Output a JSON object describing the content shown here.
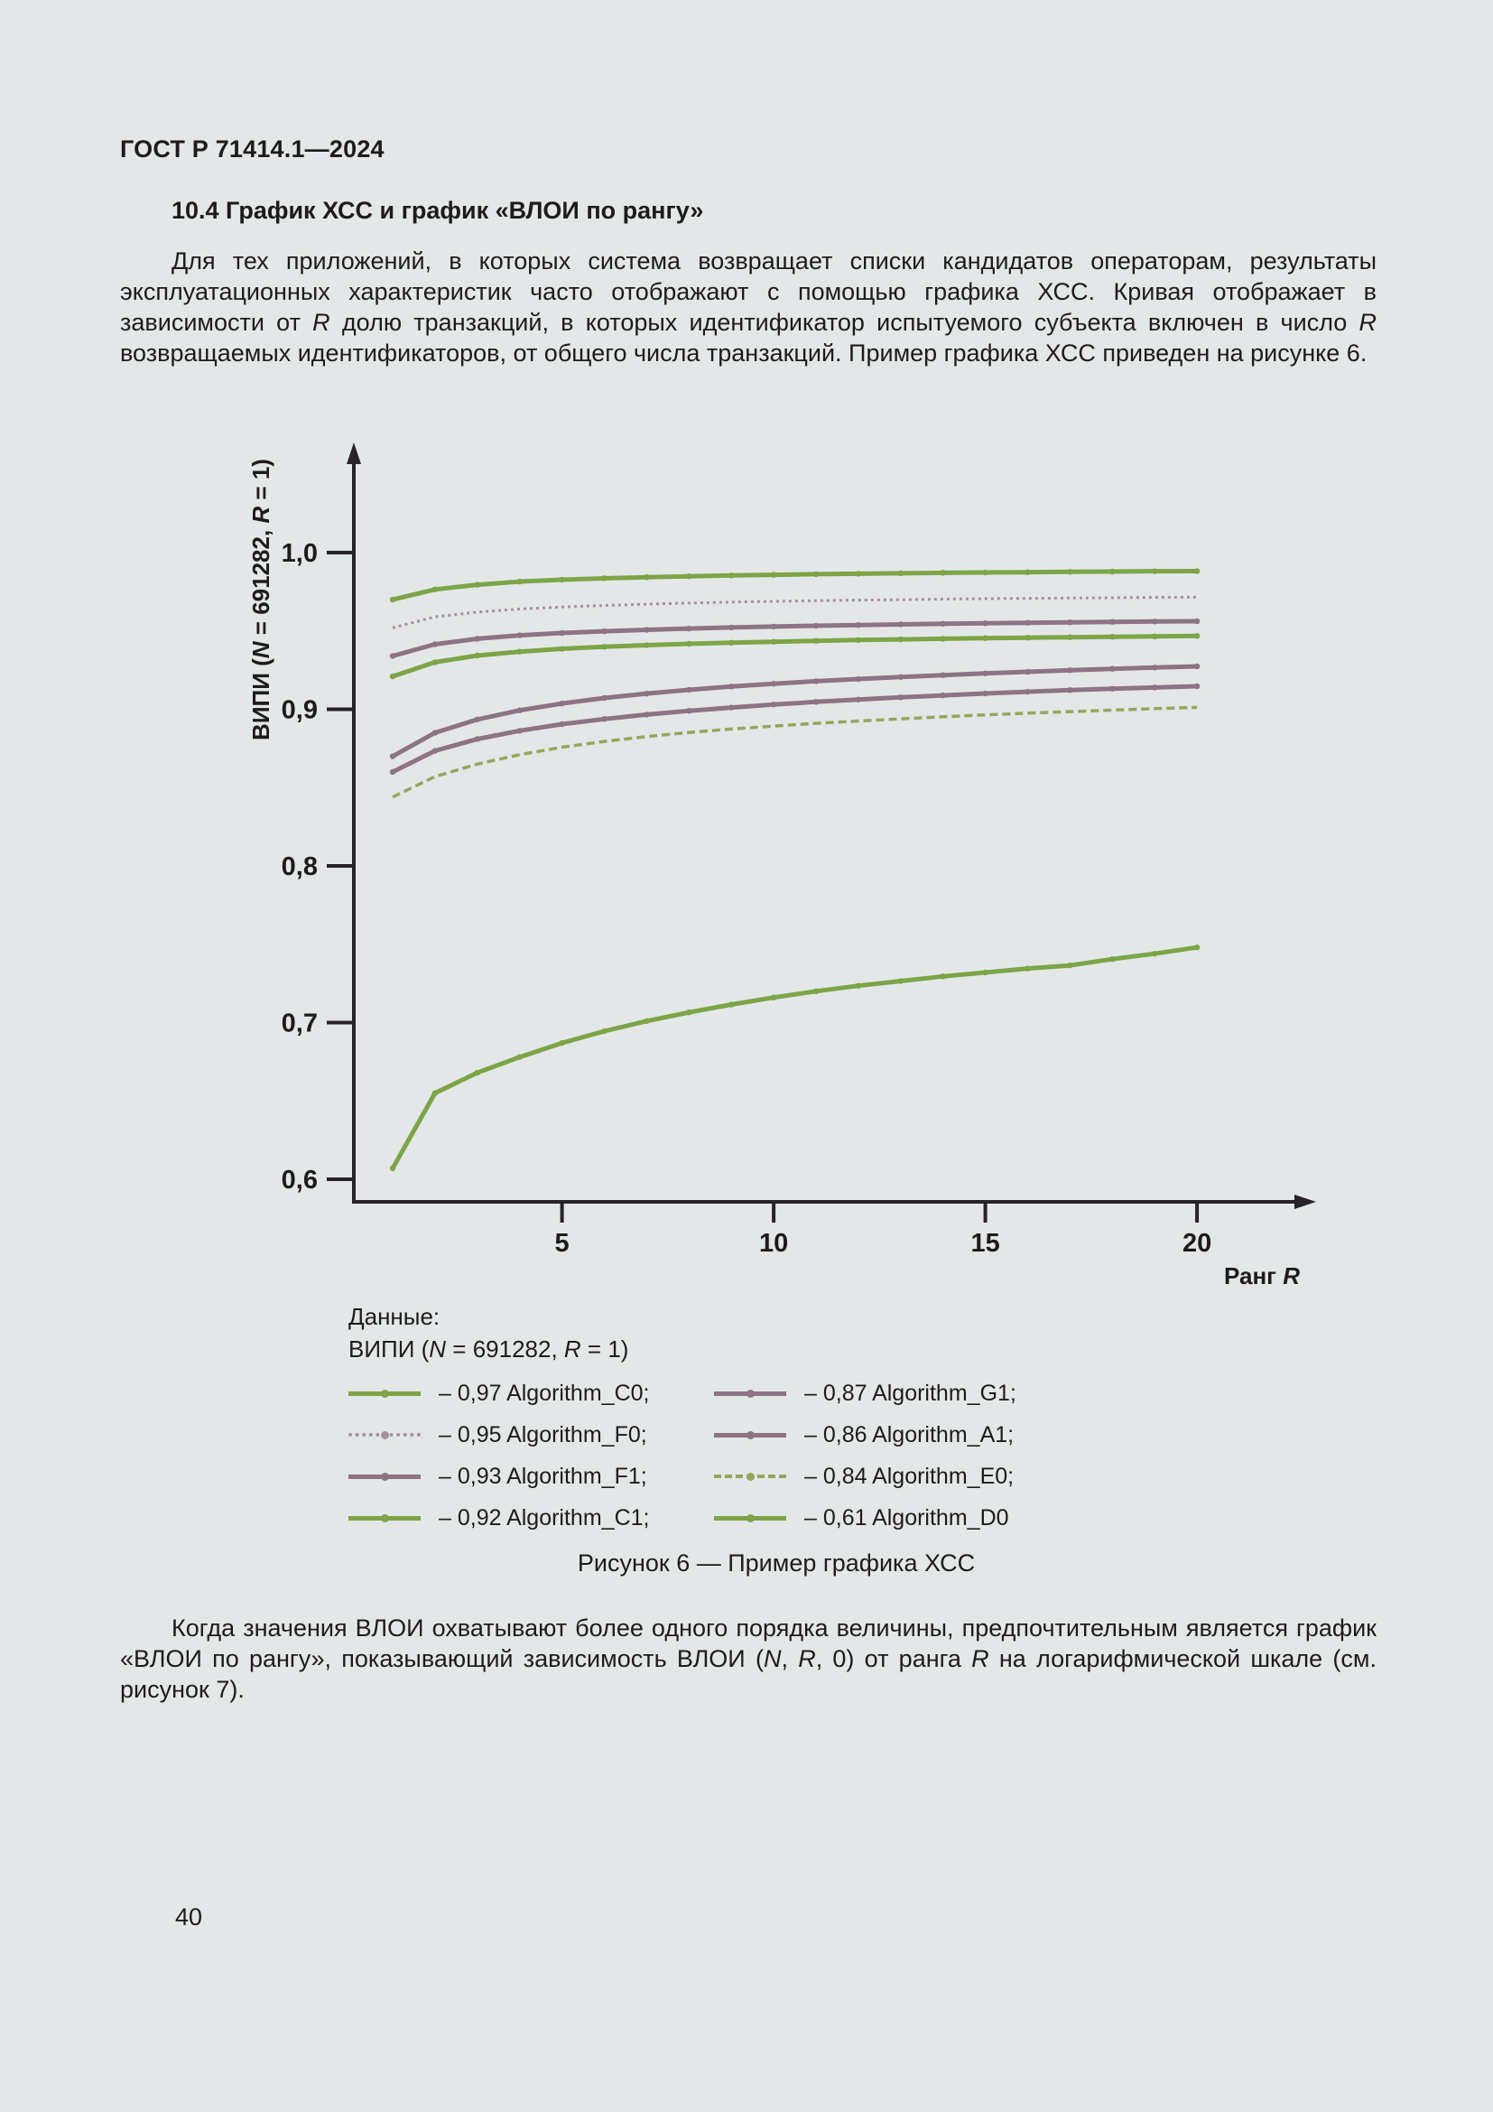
{
  "page": {
    "header": "ГОСТ Р 71414.1—2024",
    "page_number": "40"
  },
  "section": {
    "heading": "10.4  График ХСС и график «ВЛОИ по рангу»"
  },
  "paragraphs": {
    "p1": [
      {
        "t": "Для тех приложений, в которых система возвращает списки кандидатов операторам, результаты эксплуатационных характеристик часто отображают с помощью графика ХСС. Кривая отображает в зависимости от "
      },
      {
        "t": "R",
        "i": true
      },
      {
        "t": " долю транзакций, в которых идентификатор испытуемого субъекта включен в число "
      },
      {
        "t": "R",
        "i": true
      },
      {
        "t": " возвращаемых идентификаторов, от общего числа транзакций. Пример графика ХСС приведен на рисунке 6."
      }
    ],
    "p2": [
      {
        "t": "Когда значения ВЛОИ охватывают более одного порядка величины, предпочтительным является график «ВЛОИ по рангу», показывающий зависимость ВЛОИ ("
      },
      {
        "t": "N",
        "i": true
      },
      {
        "t": ", "
      },
      {
        "t": "R",
        "i": true
      },
      {
        "t": ", 0) от ранга "
      },
      {
        "t": "R",
        "i": true
      },
      {
        "t": " на логарифмической шкале (см. рисунок 7)."
      }
    ]
  },
  "figure": {
    "caption": "Рисунок 6 — Пример графика ХСС",
    "legend": {
      "title": "Данные:",
      "subtitle_segments": [
        {
          "t": "ВИПИ ("
        },
        {
          "t": "N",
          "i": true
        },
        {
          "t": " = 691282, "
        },
        {
          "t": "R",
          "i": true
        },
        {
          "t": " = 1)"
        }
      ],
      "items": [
        {
          "label": "– 0,97 Algorithm_C0;",
          "style": "solid",
          "color": "#7ba547"
        },
        {
          "label": "– 0,95 Algorithm_F0;",
          "style": "dotted",
          "color": "#a48fa0"
        },
        {
          "label": "– 0,93 Algorithm_F1;",
          "style": "solid",
          "color": "#8d7383"
        },
        {
          "label": "– 0,92 Algorithm_C1;",
          "style": "solid",
          "color": "#7ba547"
        },
        {
          "label": "– 0,87 Algorithm_G1;",
          "style": "solid",
          "color": "#8d7383"
        },
        {
          "label": "– 0,86 Algorithm_A1;",
          "style": "solid",
          "color": "#8d7383"
        },
        {
          "label": "– 0,84 Algorithm_E0;",
          "style": "dashed",
          "color": "#97a55f"
        },
        {
          "label": "– 0,61 Algorithm_D0",
          "style": "solid",
          "color": "#7ba547"
        }
      ]
    }
  },
  "chart_data": {
    "type": "line",
    "title": "",
    "xlabel_segments": [
      {
        "t": "Ранг "
      },
      {
        "t": "R",
        "i": true
      }
    ],
    "ylabel_segments": [
      {
        "t": "ВИПИ ("
      },
      {
        "t": "N",
        "i": true
      },
      {
        "t": " = 691282, "
      },
      {
        "t": "R",
        "i": true
      },
      {
        "t": " = 1)"
      }
    ],
    "xlim": [
      1,
      22
    ],
    "ylim": [
      0.58,
      1.02
    ],
    "grid": false,
    "legend_position": "below",
    "xticks": [
      {
        "v": 5,
        "label": "5"
      },
      {
        "v": 10,
        "label": "10"
      },
      {
        "v": 15,
        "label": "15"
      },
      {
        "v": 20,
        "label": "20"
      }
    ],
    "yticks": [
      {
        "v": 1.0,
        "label": "1,0"
      },
      {
        "v": 0.9,
        "label": "0,9"
      },
      {
        "v": 0.8,
        "label": "0,8"
      },
      {
        "v": 0.7,
        "label": "0,7"
      },
      {
        "v": 0.6,
        "label": "0,6"
      }
    ],
    "x": [
      1,
      2,
      3,
      4,
      5,
      6,
      7,
      8,
      9,
      10,
      11,
      12,
      13,
      14,
      15,
      16,
      17,
      18,
      19,
      20
    ],
    "series": [
      {
        "name": "Algorithm_C0",
        "legend_value": "0,97",
        "color": "#7ba547",
        "style": "solid",
        "values": [
          0.97,
          0.9765,
          0.9795,
          0.9815,
          0.9827,
          0.9836,
          0.9843,
          0.9849,
          0.9854,
          0.9858,
          0.9862,
          0.9865,
          0.9868,
          0.9871,
          0.9873,
          0.9875,
          0.9877,
          0.9879,
          0.9881,
          0.9882
        ]
      },
      {
        "name": "Algorithm_F0",
        "legend_value": "0,95",
        "color": "#a48fa0",
        "style": "dotted",
        "values": [
          0.952,
          0.959,
          0.962,
          0.964,
          0.9653,
          0.9663,
          0.9671,
          0.9678,
          0.9684,
          0.9689,
          0.9693,
          0.9697,
          0.97,
          0.9703,
          0.9706,
          0.9708,
          0.971,
          0.9712,
          0.9714,
          0.9716
        ]
      },
      {
        "name": "Algorithm_F1",
        "legend_value": "0,93",
        "color": "#8d7383",
        "style": "solid",
        "values": [
          0.934,
          0.9415,
          0.945,
          0.9472,
          0.9487,
          0.9498,
          0.9507,
          0.9515,
          0.9522,
          0.9528,
          0.9533,
          0.9538,
          0.9542,
          0.9546,
          0.9549,
          0.9552,
          0.9555,
          0.9558,
          0.956,
          0.9562
        ]
      },
      {
        "name": "Algorithm_C1",
        "legend_value": "0,92",
        "color": "#7ba547",
        "style": "solid",
        "values": [
          0.921,
          0.93,
          0.9343,
          0.9368,
          0.9386,
          0.9399,
          0.9409,
          0.9418,
          0.9425,
          0.9431,
          0.9437,
          0.9442,
          0.9446,
          0.945,
          0.9454,
          0.9457,
          0.946,
          0.9463,
          0.9465,
          0.9468
        ]
      },
      {
        "name": "Algorithm_G1",
        "legend_value": "0,87",
        "color": "#8d7383",
        "style": "solid",
        "values": [
          0.87,
          0.885,
          0.8935,
          0.8993,
          0.9037,
          0.9072,
          0.91,
          0.9124,
          0.9145,
          0.9163,
          0.9179,
          0.9193,
          0.9206,
          0.9218,
          0.9229,
          0.9239,
          0.9249,
          0.9258,
          0.9266,
          0.9274
        ]
      },
      {
        "name": "Algorithm_A1",
        "legend_value": "0,86",
        "color": "#8d7383",
        "style": "solid",
        "values": [
          0.86,
          0.8735,
          0.881,
          0.8863,
          0.8905,
          0.8938,
          0.8966,
          0.899,
          0.9011,
          0.903,
          0.9047,
          0.9062,
          0.9076,
          0.9089,
          0.9101,
          0.9112,
          0.9122,
          0.9131,
          0.9139,
          0.9147
        ]
      },
      {
        "name": "Algorithm_E0",
        "legend_value": "0,84",
        "color": "#97a55f",
        "style": "dashed",
        "values": [
          0.844,
          0.857,
          0.865,
          0.871,
          0.8758,
          0.8795,
          0.8826,
          0.8852,
          0.8874,
          0.8893,
          0.891,
          0.8925,
          0.8939,
          0.8952,
          0.8964,
          0.8975,
          0.8985,
          0.8995,
          0.9004,
          0.9012
        ]
      },
      {
        "name": "Algorithm_D0",
        "legend_value": "0,61",
        "color": "#7ba547",
        "style": "solid",
        "values": [
          0.607,
          0.655,
          0.668,
          0.678,
          0.687,
          0.6945,
          0.701,
          0.7065,
          0.7115,
          0.716,
          0.72,
          0.7235,
          0.7265,
          0.7295,
          0.732,
          0.7345,
          0.7365,
          0.7405,
          0.744,
          0.748
        ]
      }
    ]
  }
}
